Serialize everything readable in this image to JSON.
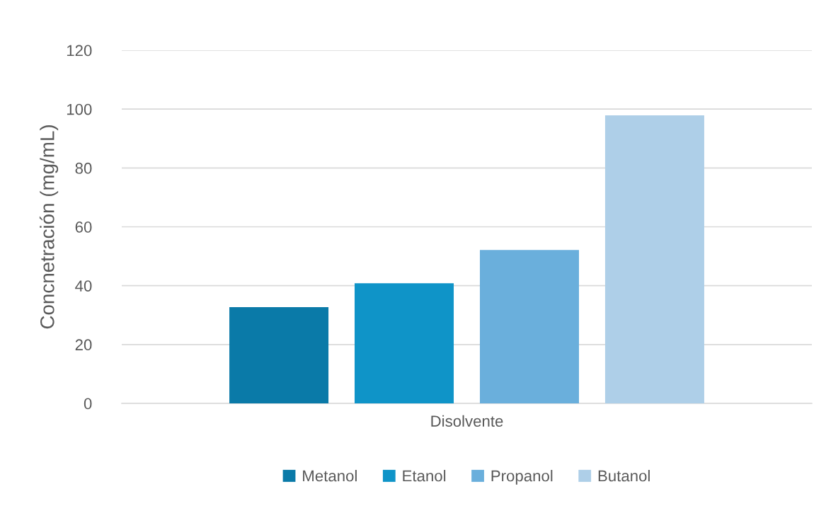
{
  "chart_data": {
    "type": "bar",
    "ylabel": "Concnetración (mg/mL)",
    "categories": [
      "Disolvente"
    ],
    "series": [
      {
        "name": "Metanol",
        "color": "#0a7aa8",
        "values": [
          32.7
        ]
      },
      {
        "name": "Etanol",
        "color": "#0f94c8",
        "values": [
          40.8
        ]
      },
      {
        "name": "Propanol",
        "color": "#6aafdc",
        "values": [
          52.1
        ]
      },
      {
        "name": "Butanol",
        "color": "#aecfe8",
        "values": [
          97.9
        ]
      }
    ],
    "ylim": [
      0,
      120
    ],
    "yticks": [
      0,
      20,
      40,
      60,
      80,
      100,
      120
    ],
    "grid": "y",
    "legend": "bottom"
  }
}
